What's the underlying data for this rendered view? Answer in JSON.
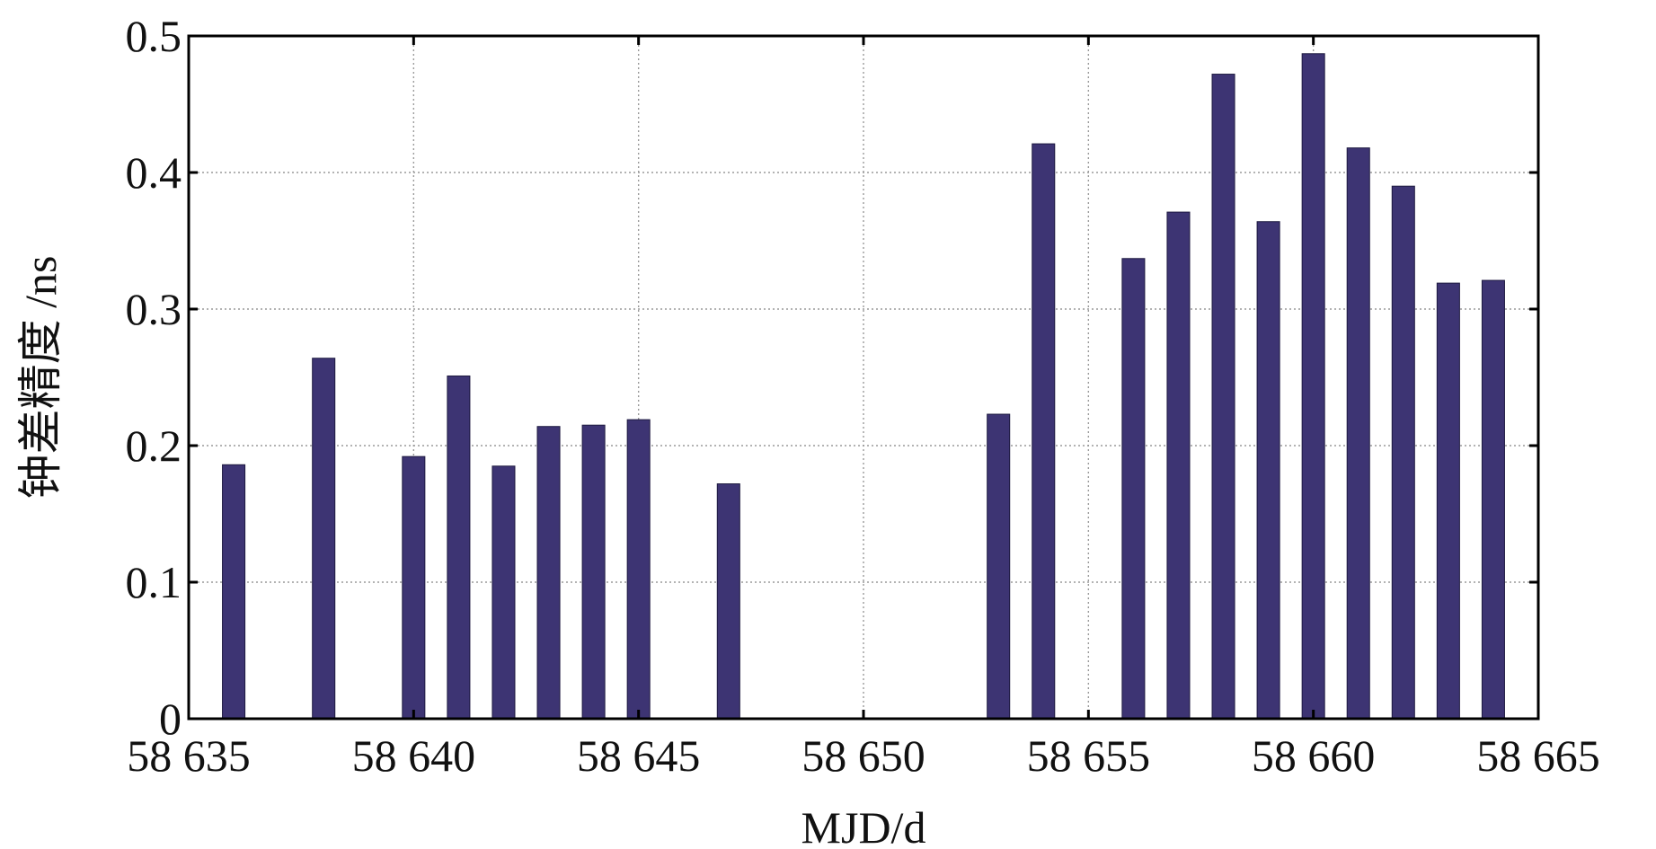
{
  "chart_data": {
    "type": "bar",
    "title": "",
    "xlabel": "MJD/d",
    "ylabel": "钟差精度 /ns",
    "xlim": [
      58635,
      58665
    ],
    "ylim": [
      0,
      0.5
    ],
    "grid": true,
    "bar_color": "#3d3473",
    "x_ticks": [
      58635,
      58640,
      58645,
      58650,
      58655,
      58660,
      58665
    ],
    "x_tick_labels": [
      "58 635",
      "58 640",
      "58 645",
      "58 650",
      "58 655",
      "58 660",
      "58 665"
    ],
    "y_ticks": [
      0,
      0.1,
      0.2,
      0.3,
      0.4,
      0.5
    ],
    "y_tick_labels": [
      "0",
      "0.1",
      "0.2",
      "0.3",
      "0.4",
      "0.5"
    ],
    "x": [
      58636,
      58638,
      58640,
      58641,
      58642,
      58643,
      58644,
      58645,
      58647,
      58653,
      58654,
      58656,
      58657,
      58658,
      58659,
      58660,
      58661,
      58662,
      58663,
      58664
    ],
    "values": [
      0.186,
      0.264,
      0.192,
      0.251,
      0.185,
      0.214,
      0.215,
      0.219,
      0.172,
      0.223,
      0.421,
      0.337,
      0.371,
      0.472,
      0.364,
      0.487,
      0.418,
      0.39,
      0.319,
      0.321
    ]
  }
}
